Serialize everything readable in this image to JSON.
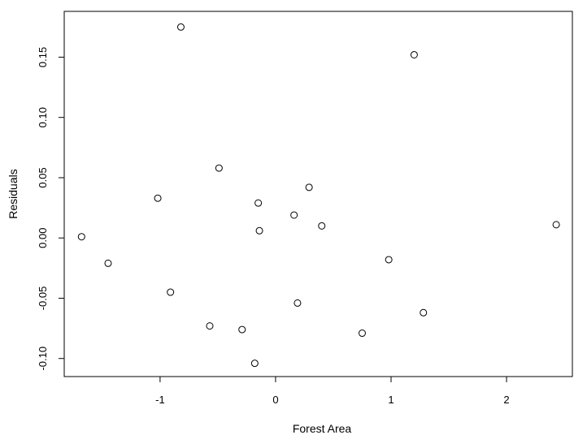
{
  "chart_data": {
    "type": "scatter",
    "title": "",
    "xlabel": "Forest Area",
    "ylabel": "Residuals",
    "xlim": [
      -1.83,
      2.57
    ],
    "ylim": [
      -0.115,
      0.188
    ],
    "x_ticks": [
      -1,
      0,
      1,
      2
    ],
    "x_tick_labels": [
      "-1",
      "0",
      "1",
      "2"
    ],
    "y_ticks": [
      -0.1,
      -0.05,
      0.0,
      0.05,
      0.1,
      0.15
    ],
    "y_tick_labels": [
      "-0.10",
      "-0.05",
      "0.00",
      "0.05",
      "0.10",
      "0.15"
    ],
    "grid": false,
    "legend": "none",
    "marker": "open-circle",
    "points": [
      {
        "x": -1.68,
        "y": 0.001
      },
      {
        "x": -1.45,
        "y": -0.021
      },
      {
        "x": -1.02,
        "y": 0.033
      },
      {
        "x": -0.91,
        "y": -0.045
      },
      {
        "x": -0.82,
        "y": 0.175
      },
      {
        "x": -0.57,
        "y": -0.073
      },
      {
        "x": -0.49,
        "y": 0.058
      },
      {
        "x": -0.29,
        "y": -0.076
      },
      {
        "x": -0.18,
        "y": -0.104
      },
      {
        "x": -0.15,
        "y": 0.029
      },
      {
        "x": -0.14,
        "y": 0.006
      },
      {
        "x": 0.16,
        "y": 0.019
      },
      {
        "x": 0.19,
        "y": -0.054
      },
      {
        "x": 0.29,
        "y": 0.042
      },
      {
        "x": 0.4,
        "y": 0.01
      },
      {
        "x": 0.75,
        "y": -0.079
      },
      {
        "x": 0.98,
        "y": -0.018
      },
      {
        "x": 1.2,
        "y": 0.152
      },
      {
        "x": 1.28,
        "y": -0.062
      },
      {
        "x": 2.43,
        "y": 0.011
      }
    ]
  }
}
